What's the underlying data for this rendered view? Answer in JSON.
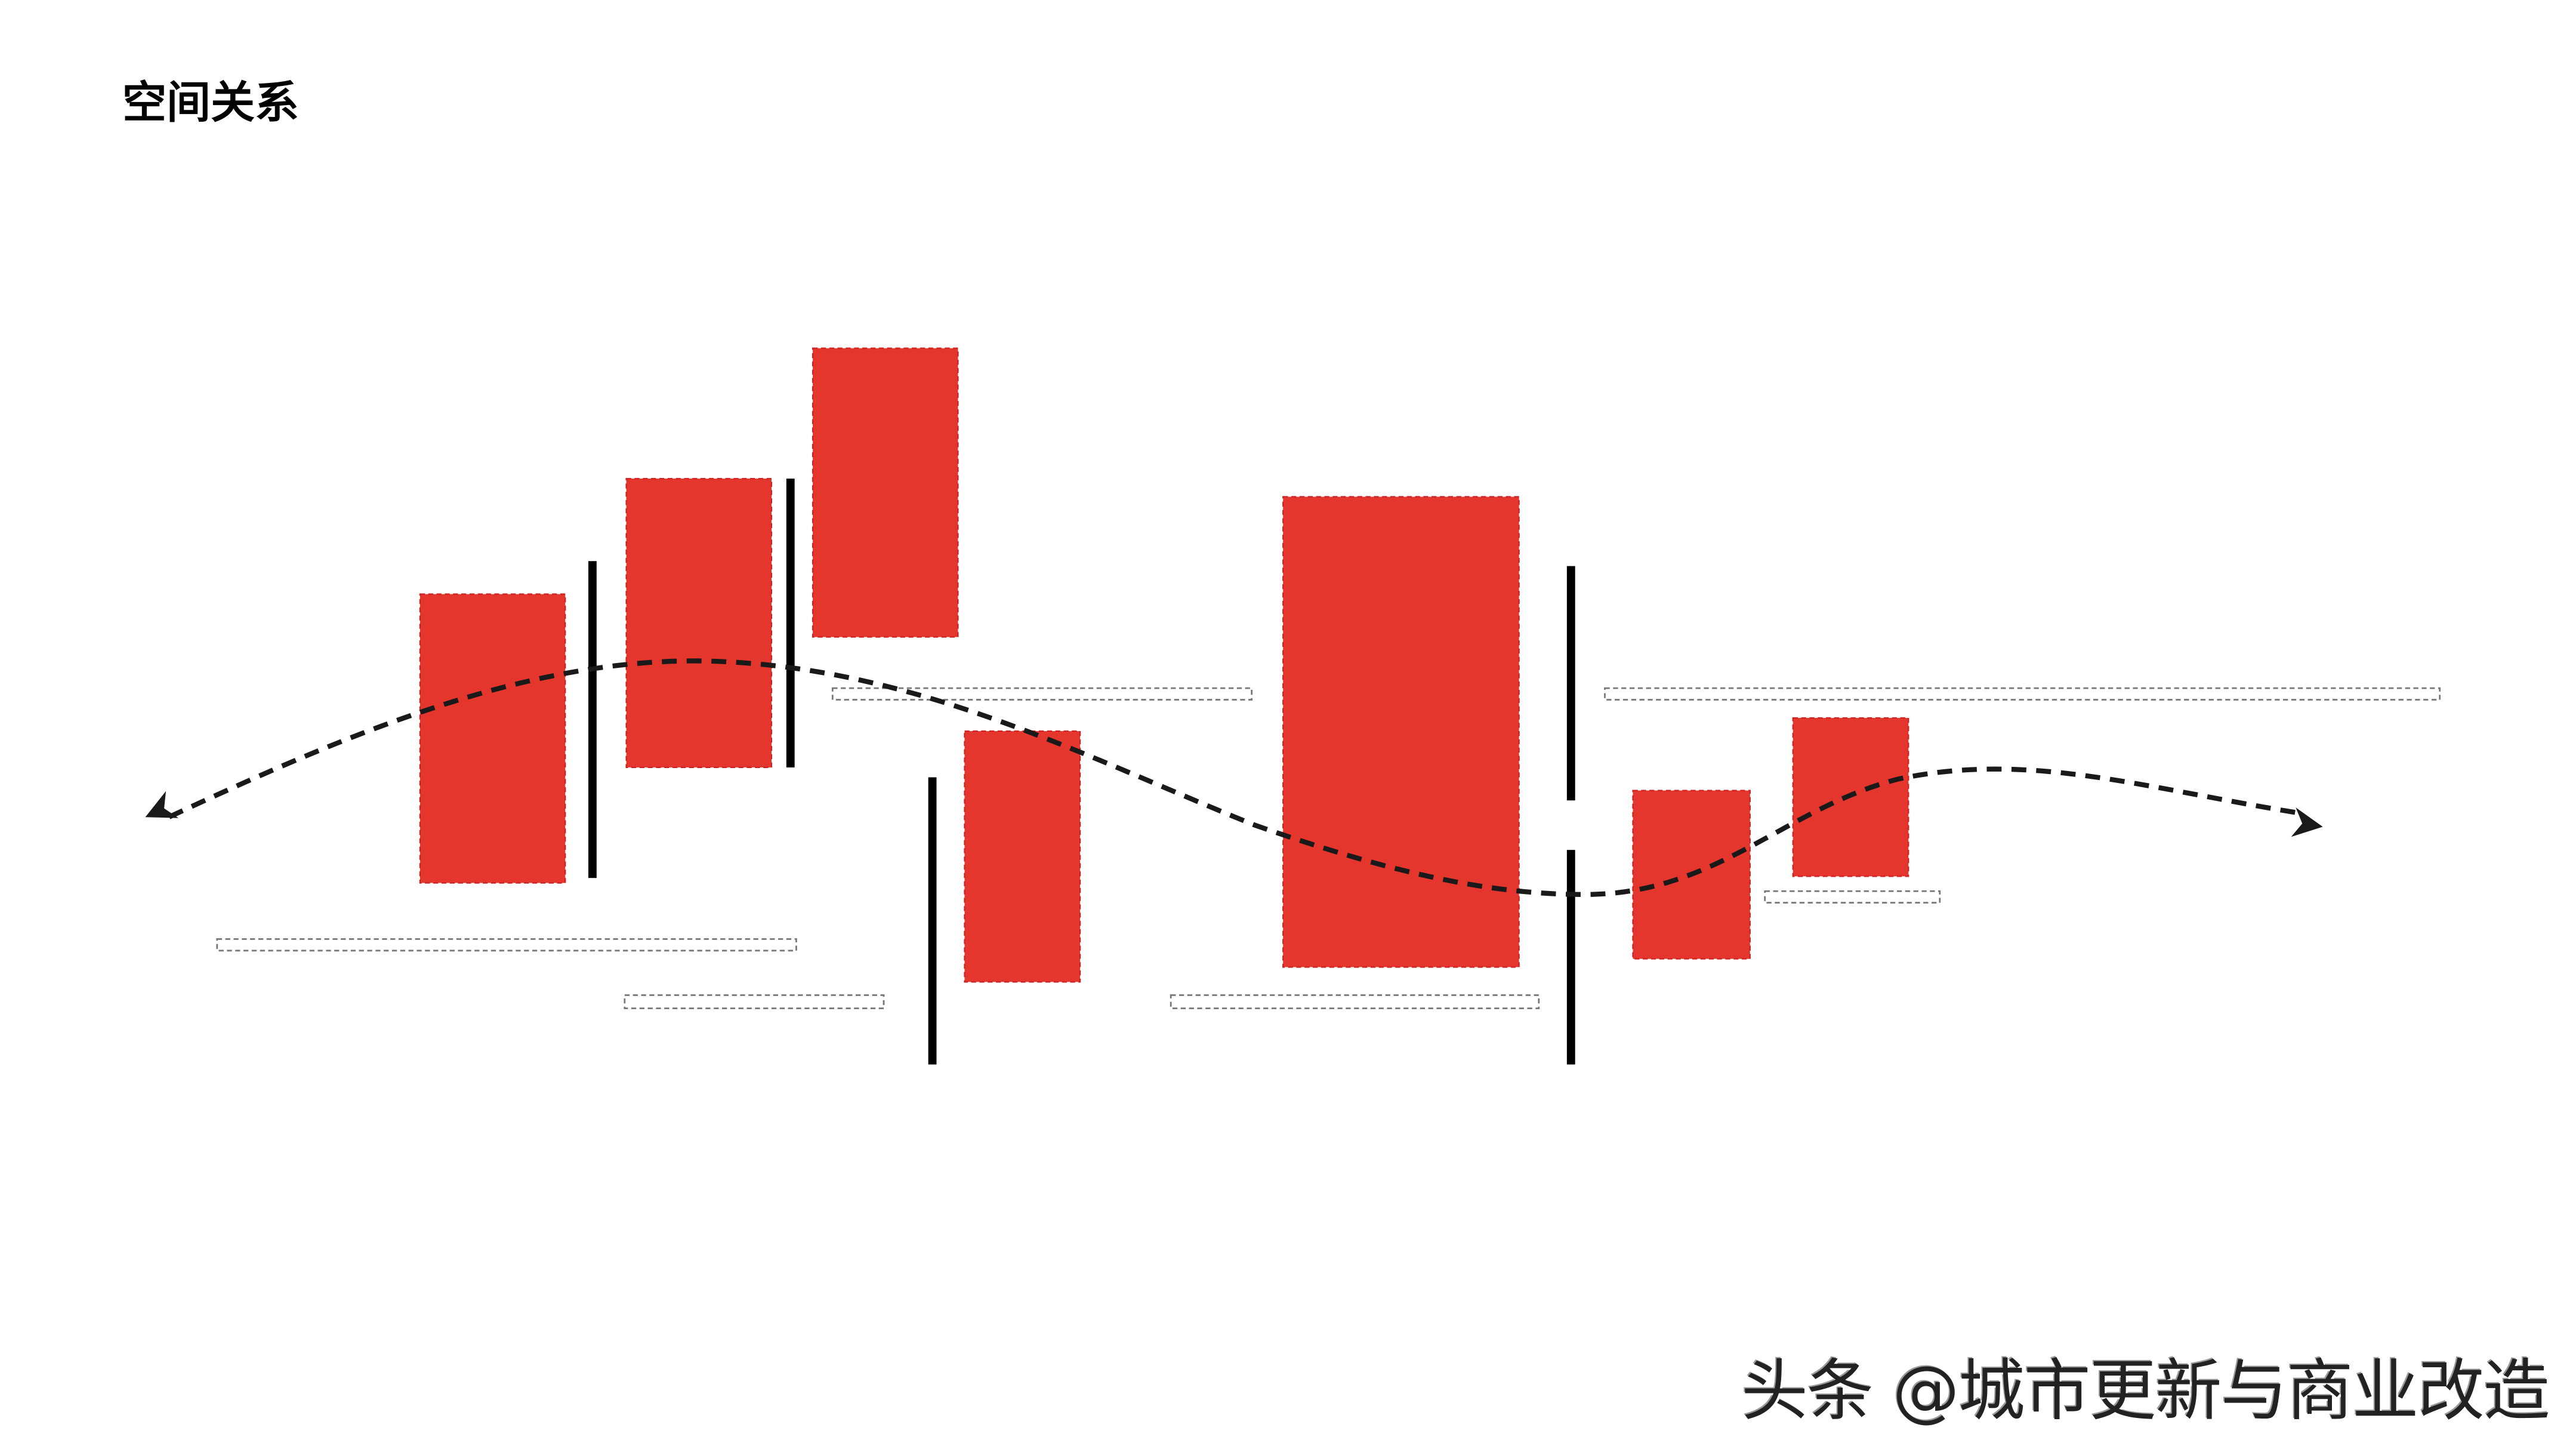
{
  "title": "空间关系",
  "watermark": "头条 @城市更新与商业改造",
  "colors": {
    "block": "#e5362e",
    "wall": "#000000",
    "path": "#1a1a1a",
    "dashed_outline": "#888888"
  },
  "diagram": {
    "blocks": 7,
    "walls": 5,
    "dashed_zones": 6,
    "path": "dashed-curve-bidirectional-arrow"
  }
}
